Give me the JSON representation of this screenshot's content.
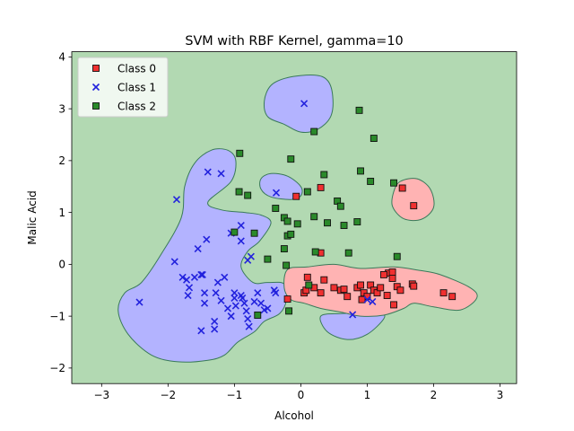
{
  "chart_data": {
    "type": "scatter",
    "title": "SVM with RBF Kernel, gamma=10",
    "xlabel": "Alcohol",
    "ylabel": "Malic Acid",
    "xlim": [
      -3.45,
      3.25
    ],
    "ylim": [
      -2.3,
      4.1
    ],
    "xticks": [
      "-3",
      "-2",
      "-1",
      "0",
      "1",
      "2",
      "3"
    ],
    "yticks": [
      "-2",
      "-1",
      "0",
      "1",
      "2",
      "3",
      "4"
    ],
    "grid": false,
    "legend_position": "top-left",
    "background_region": {
      "label": "Class 2",
      "color": "#b2d9b2"
    },
    "colors": {
      "class0_region": "#ffb3b3",
      "class1_region": "#b3b3ff",
      "class2_region": "#b2d9b2",
      "boundary": "#3a7a5a",
      "class0_marker": "#f03030",
      "class1_marker": "#2222dd",
      "class2_marker": "#2a8a2a"
    },
    "series": [
      {
        "name": "Class 0",
        "marker": "square",
        "color": "#f03030",
        "points": [
          [
            -0.07,
            1.31
          ],
          [
            0.3,
            1.48
          ],
          [
            1.53,
            1.47
          ],
          [
            1.7,
            1.13
          ],
          [
            0.3,
            0.22
          ],
          [
            -0.2,
            -0.67
          ],
          [
            0.05,
            -0.55
          ],
          [
            0.08,
            -0.5
          ],
          [
            0.1,
            -0.25
          ],
          [
            0.2,
            -0.45
          ],
          [
            0.3,
            -0.55
          ],
          [
            0.35,
            -0.3
          ],
          [
            0.5,
            -0.45
          ],
          [
            0.6,
            -0.5
          ],
          [
            0.65,
            -0.48
          ],
          [
            0.7,
            -0.62
          ],
          [
            0.85,
            -0.45
          ],
          [
            0.9,
            -0.4
          ],
          [
            0.95,
            -0.55
          ],
          [
            1.0,
            -0.62
          ],
          [
            1.05,
            -0.4
          ],
          [
            1.1,
            -0.5
          ],
          [
            1.15,
            -0.55
          ],
          [
            0.92,
            -0.68
          ],
          [
            1.2,
            -0.45
          ],
          [
            1.3,
            -0.6
          ],
          [
            1.32,
            -0.17
          ],
          [
            1.38,
            -0.27
          ],
          [
            1.45,
            -0.43
          ],
          [
            1.4,
            -0.78
          ],
          [
            1.38,
            -0.15
          ],
          [
            1.5,
            -0.5
          ],
          [
            1.68,
            -0.38
          ],
          [
            1.7,
            -0.42
          ],
          [
            2.15,
            -0.55
          ],
          [
            2.28,
            -0.62
          ],
          [
            1.25,
            -0.2
          ]
        ]
      },
      {
        "name": "Class 1",
        "marker": "x",
        "color": "#2222dd",
        "points": [
          [
            0.05,
            3.1
          ],
          [
            -2.43,
            -0.73
          ],
          [
            -1.87,
            1.25
          ],
          [
            -1.9,
            0.05
          ],
          [
            -1.78,
            -0.25
          ],
          [
            -1.72,
            -0.3
          ],
          [
            -1.68,
            -0.45
          ],
          [
            -1.7,
            -0.6
          ],
          [
            -1.55,
            0.3
          ],
          [
            -1.5,
            -0.2
          ],
          [
            -1.48,
            -0.2
          ],
          [
            -1.45,
            -0.55
          ],
          [
            -1.45,
            -0.75
          ],
          [
            -1.42,
            0.48
          ],
          [
            -1.4,
            1.78
          ],
          [
            -1.25,
            -0.35
          ],
          [
            -1.28,
            -0.55
          ],
          [
            -1.3,
            -1.1
          ],
          [
            -1.3,
            -1.25
          ],
          [
            -1.2,
            1.75
          ],
          [
            -1.2,
            -0.7
          ],
          [
            -1.15,
            -0.25
          ],
          [
            -1.1,
            -0.85
          ],
          [
            -1.05,
            -1.0
          ],
          [
            -1.0,
            -0.55
          ],
          [
            -1.0,
            -0.65
          ],
          [
            -0.98,
            -0.8
          ],
          [
            -0.9,
            0.45
          ],
          [
            -0.9,
            -0.6
          ],
          [
            -0.88,
            -0.65
          ],
          [
            -0.85,
            -0.75
          ],
          [
            -0.8,
            -1.05
          ],
          [
            -0.78,
            -1.2
          ],
          [
            -0.75,
            0.15
          ],
          [
            -0.82,
            -0.9
          ],
          [
            -0.7,
            -0.72
          ],
          [
            -0.65,
            -0.55
          ],
          [
            -0.6,
            -0.75
          ],
          [
            -0.55,
            -0.88
          ],
          [
            -0.5,
            -0.85
          ],
          [
            -0.4,
            -0.5
          ],
          [
            -0.38,
            -0.55
          ],
          [
            -0.37,
            1.38
          ],
          [
            -1.05,
            0.6
          ],
          [
            -0.9,
            0.75
          ],
          [
            -0.8,
            0.08
          ],
          [
            -1.5,
            -1.28
          ],
          [
            -1.6,
            -0.25
          ],
          [
            0.78,
            -0.97
          ],
          [
            1.08,
            -0.72
          ],
          [
            1.0,
            -0.68
          ],
          [
            0.1,
            1.4
          ]
        ]
      },
      {
        "name": "Class 2",
        "marker": "square",
        "color": "#2a8a2a",
        "points": [
          [
            -0.92,
            2.14
          ],
          [
            -0.93,
            1.4
          ],
          [
            -0.8,
            1.33
          ],
          [
            -1.0,
            0.62
          ],
          [
            -0.7,
            0.6
          ],
          [
            -0.65,
            -0.98
          ],
          [
            -0.5,
            0.1
          ],
          [
            -0.38,
            1.08
          ],
          [
            -0.25,
            0.9
          ],
          [
            -0.2,
            0.83
          ],
          [
            -0.2,
            0.55
          ],
          [
            -0.15,
            0.58
          ],
          [
            -0.25,
            0.3
          ],
          [
            -0.22,
            -0.02
          ],
          [
            -0.15,
            2.03
          ],
          [
            -0.05,
            0.78
          ],
          [
            0.2,
            0.92
          ],
          [
            0.2,
            2.56
          ],
          [
            0.35,
            1.73
          ],
          [
            0.4,
            0.8
          ],
          [
            0.1,
            1.4
          ],
          [
            0.55,
            1.22
          ],
          [
            0.6,
            1.12
          ],
          [
            0.65,
            0.75
          ],
          [
            0.72,
            0.22
          ],
          [
            0.85,
            0.82
          ],
          [
            0.88,
            2.97
          ],
          [
            0.9,
            1.8
          ],
          [
            1.05,
            1.6
          ],
          [
            1.1,
            2.43
          ],
          [
            1.4,
            1.57
          ],
          [
            1.45,
            0.15
          ],
          [
            0.12,
            -0.4
          ],
          [
            0.22,
            0.24
          ],
          [
            -0.18,
            -0.9
          ]
        ]
      }
    ],
    "decision_regions": {
      "class1": [
        [
          [
            -0.55,
            3.15
          ],
          [
            -0.45,
            3.45
          ],
          [
            -0.2,
            3.6
          ],
          [
            0.2,
            3.65
          ],
          [
            0.4,
            3.55
          ],
          [
            0.48,
            3.25
          ],
          [
            0.45,
            2.85
          ],
          [
            0.25,
            2.6
          ],
          [
            0.0,
            2.55
          ],
          [
            -0.25,
            2.7
          ],
          [
            -0.5,
            2.85
          ]
        ],
        [
          [
            -0.6,
            1.65
          ],
          [
            -0.45,
            1.75
          ],
          [
            -0.2,
            1.7
          ],
          [
            0.0,
            1.5
          ],
          [
            0.0,
            1.32
          ],
          [
            -0.15,
            1.25
          ],
          [
            -0.45,
            1.3
          ],
          [
            -0.6,
            1.45
          ]
        ],
        [
          [
            -2.4,
            -0.35
          ],
          [
            -2.1,
            0.2
          ],
          [
            -1.8,
            0.9
          ],
          [
            -1.75,
            1.5
          ],
          [
            -1.6,
            1.95
          ],
          [
            -1.35,
            2.2
          ],
          [
            -1.1,
            2.2
          ],
          [
            -0.98,
            2.0
          ],
          [
            -1.05,
            1.6
          ],
          [
            -1.4,
            1.2
          ],
          [
            -1.2,
            1.05
          ],
          [
            -0.85,
            1.0
          ],
          [
            -0.6,
            0.95
          ],
          [
            -0.45,
            0.8
          ],
          [
            -0.62,
            0.45
          ],
          [
            -0.8,
            0.25
          ],
          [
            -0.9,
            -0.05
          ],
          [
            -0.72,
            -0.35
          ],
          [
            -0.5,
            -0.35
          ],
          [
            -0.25,
            -0.38
          ],
          [
            -0.22,
            -0.7
          ],
          [
            -0.32,
            -0.95
          ],
          [
            -0.55,
            -1.1
          ],
          [
            -0.7,
            -1.3
          ],
          [
            -0.95,
            -1.5
          ],
          [
            -1.15,
            -1.75
          ],
          [
            -1.4,
            -1.85
          ],
          [
            -1.85,
            -1.88
          ],
          [
            -2.25,
            -1.75
          ],
          [
            -2.6,
            -1.35
          ],
          [
            -2.75,
            -0.9
          ],
          [
            -2.65,
            -0.55
          ]
        ],
        [
          [
            0.3,
            -1.0
          ],
          [
            0.4,
            -1.3
          ],
          [
            0.7,
            -1.45
          ],
          [
            1.0,
            -1.35
          ],
          [
            1.25,
            -1.05
          ],
          [
            1.2,
            -0.95
          ],
          [
            0.9,
            -0.95
          ],
          [
            0.6,
            -0.95
          ]
        ]
      ],
      "class0": [
        [
          [
            -0.2,
            -0.1
          ],
          [
            0.1,
            -0.05
          ],
          [
            0.5,
            0.0
          ],
          [
            0.9,
            -0.08
          ],
          [
            1.4,
            -0.05
          ],
          [
            1.8,
            -0.12
          ],
          [
            2.1,
            -0.2
          ],
          [
            2.55,
            -0.45
          ],
          [
            2.65,
            -0.65
          ],
          [
            2.4,
            -0.88
          ],
          [
            2.0,
            -0.82
          ],
          [
            1.7,
            -0.75
          ],
          [
            1.55,
            -0.85
          ],
          [
            1.25,
            -0.98
          ],
          [
            0.9,
            -1.0
          ],
          [
            0.6,
            -0.92
          ],
          [
            0.3,
            -0.85
          ],
          [
            0.05,
            -0.75
          ],
          [
            -0.15,
            -0.68
          ],
          [
            -0.25,
            -0.45
          ]
        ],
        [
          [
            1.4,
            1.4
          ],
          [
            1.5,
            1.6
          ],
          [
            1.75,
            1.65
          ],
          [
            1.95,
            1.45
          ],
          [
            2.0,
            1.1
          ],
          [
            1.82,
            0.87
          ],
          [
            1.55,
            0.88
          ],
          [
            1.38,
            1.12
          ]
        ]
      ]
    }
  }
}
